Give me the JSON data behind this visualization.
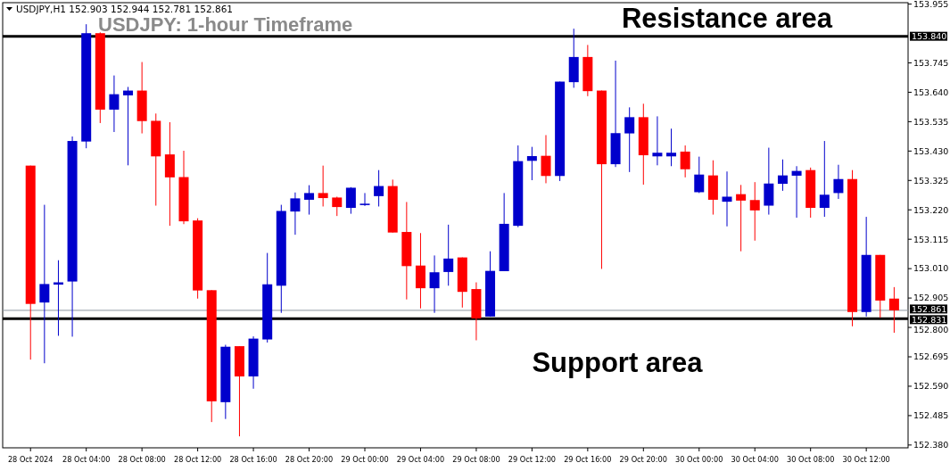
{
  "chart_data": {
    "type": "candlestick",
    "title": "USDJPY: 1-hour Timeframe",
    "subtitle": "USDJPY,H1  152.903 152.944 152.781 152.861",
    "x": [
      "2024-10-28T00:00",
      "2024-10-28T01:00",
      "2024-10-28T02:00",
      "2024-10-28T03:00",
      "2024-10-28T04:00",
      "2024-10-28T05:00",
      "2024-10-28T06:00",
      "2024-10-28T07:00",
      "2024-10-28T08:00",
      "2024-10-28T09:00",
      "2024-10-28T10:00",
      "2024-10-28T11:00",
      "2024-10-28T12:00",
      "2024-10-28T13:00",
      "2024-10-28T14:00",
      "2024-10-28T15:00",
      "2024-10-28T16:00",
      "2024-10-28T17:00",
      "2024-10-28T18:00",
      "2024-10-28T19:00",
      "2024-10-28T20:00",
      "2024-10-28T21:00",
      "2024-10-28T22:00",
      "2024-10-28T23:00",
      "2024-10-29T00:00",
      "2024-10-29T01:00",
      "2024-10-29T02:00",
      "2024-10-29T03:00",
      "2024-10-29T04:00",
      "2024-10-29T05:00",
      "2024-10-29T06:00",
      "2024-10-29T07:00",
      "2024-10-29T08:00",
      "2024-10-29T09:00",
      "2024-10-29T10:00",
      "2024-10-29T11:00",
      "2024-10-29T12:00",
      "2024-10-29T13:00",
      "2024-10-29T14:00",
      "2024-10-29T15:00",
      "2024-10-29T16:00",
      "2024-10-29T17:00",
      "2024-10-29T18:00",
      "2024-10-29T19:00",
      "2024-10-29T20:00",
      "2024-10-29T21:00",
      "2024-10-29T22:00",
      "2024-10-29T23:00",
      "2024-10-30T00:00",
      "2024-10-30T01:00",
      "2024-10-30T02:00",
      "2024-10-30T03:00",
      "2024-10-30T04:00",
      "2024-10-30T05:00",
      "2024-10-30T06:00",
      "2024-10-30T07:00",
      "2024-10-30T08:00",
      "2024-10-30T09:00",
      "2024-10-30T10:00",
      "2024-10-30T11:00",
      "2024-10-30T12:00",
      "2024-10-30T13:00",
      "2024-10-30T14:00"
    ],
    "ohlc": [
      [
        153.378,
        153.378,
        152.685,
        152.884
      ],
      [
        152.889,
        153.238,
        152.672,
        152.955
      ],
      [
        152.953,
        153.04,
        152.77,
        152.961
      ],
      [
        152.964,
        153.482,
        152.767,
        153.466
      ],
      [
        153.464,
        153.883,
        153.44,
        153.851
      ],
      [
        153.851,
        153.854,
        153.53,
        153.578
      ],
      [
        153.578,
        153.7,
        153.498,
        153.633
      ],
      [
        153.629,
        153.659,
        153.379,
        153.646
      ],
      [
        153.646,
        153.748,
        153.493,
        153.537
      ],
      [
        153.538,
        153.564,
        153.235,
        153.411
      ],
      [
        153.418,
        153.533,
        153.163,
        153.336
      ],
      [
        153.337,
        153.431,
        153.169,
        153.179
      ],
      [
        153.182,
        153.19,
        152.903,
        152.932
      ],
      [
        152.933,
        152.933,
        152.462,
        152.536
      ],
      [
        152.533,
        152.738,
        152.473,
        152.731
      ],
      [
        152.733,
        152.733,
        152.411,
        152.625
      ],
      [
        152.625,
        152.768,
        152.581,
        152.76
      ],
      [
        152.757,
        153.066,
        152.746,
        152.954
      ],
      [
        152.949,
        153.238,
        152.852,
        153.216
      ],
      [
        153.214,
        153.282,
        153.131,
        153.261
      ],
      [
        153.256,
        153.308,
        153.203,
        153.28
      ],
      [
        153.28,
        153.378,
        153.232,
        153.262
      ],
      [
        153.264,
        153.267,
        153.198,
        153.23
      ],
      [
        153.227,
        153.301,
        153.206,
        153.299
      ],
      [
        153.237,
        153.28,
        153.234,
        153.242
      ],
      [
        153.269,
        153.362,
        153.232,
        153.305
      ],
      [
        153.305,
        153.328,
        153.139,
        153.139
      ],
      [
        153.141,
        153.248,
        152.9,
        153.019
      ],
      [
        153.021,
        153.137,
        152.868,
        152.94
      ],
      [
        152.94,
        153.057,
        152.852,
        152.997
      ],
      [
        152.998,
        153.167,
        152.949,
        153.046
      ],
      [
        153.05,
        153.05,
        152.871,
        152.927
      ],
      [
        152.937,
        152.961,
        152.754,
        152.832
      ],
      [
        152.839,
        153.072,
        152.839,
        153.002
      ],
      [
        153.001,
        153.28,
        153.001,
        153.17
      ],
      [
        153.163,
        153.45,
        153.158,
        153.394
      ],
      [
        153.395,
        153.445,
        153.326,
        153.412
      ],
      [
        153.413,
        153.487,
        153.315,
        153.341
      ],
      [
        153.341,
        153.678,
        153.323,
        153.678
      ],
      [
        153.676,
        153.867,
        153.656,
        153.766
      ],
      [
        153.766,
        153.809,
        153.626,
        153.644
      ],
      [
        153.646,
        153.646,
        153.009,
        153.383
      ],
      [
        153.383,
        153.753,
        153.373,
        153.494
      ],
      [
        153.493,
        153.586,
        153.355,
        153.551
      ],
      [
        153.551,
        153.599,
        153.31,
        153.415
      ],
      [
        153.411,
        153.554,
        153.379,
        153.424
      ],
      [
        153.411,
        153.51,
        153.376,
        153.424
      ],
      [
        153.428,
        153.45,
        153.336,
        153.365
      ],
      [
        153.283,
        153.41,
        153.28,
        153.346
      ],
      [
        153.343,
        153.397,
        153.203,
        153.256
      ],
      [
        153.249,
        153.357,
        153.161,
        153.267
      ],
      [
        153.276,
        153.309,
        153.072,
        153.253
      ],
      [
        153.255,
        153.319,
        153.11,
        153.218
      ],
      [
        153.235,
        153.442,
        153.203,
        153.314
      ],
      [
        153.313,
        153.4,
        153.288,
        153.343
      ],
      [
        153.342,
        153.376,
        153.192,
        153.359
      ],
      [
        153.362,
        153.371,
        153.192,
        153.227
      ],
      [
        153.227,
        153.466,
        153.195,
        153.274
      ],
      [
        153.28,
        153.381,
        153.259,
        153.33
      ],
      [
        153.33,
        153.362,
        152.804,
        152.855
      ],
      [
        152.855,
        153.195,
        152.839,
        153.059
      ],
      [
        153.059,
        153.059,
        152.834,
        152.896
      ],
      [
        152.903,
        152.944,
        152.781,
        152.861
      ]
    ],
    "colors": [
      "#ff0000",
      "#0000cc",
      "#0000cc",
      "#0000cc",
      "#0000cc",
      "#ff0000",
      "#0000cc",
      "#0000cc",
      "#ff0000",
      "#ff0000",
      "#ff0000",
      "#ff0000",
      "#ff0000",
      "#ff0000",
      "#0000cc",
      "#ff0000",
      "#0000cc",
      "#0000cc",
      "#0000cc",
      "#0000cc",
      "#0000cc",
      "#ff0000",
      "#ff0000",
      "#0000cc",
      "#0000cc",
      "#0000cc",
      "#ff0000",
      "#ff0000",
      "#ff0000",
      "#0000cc",
      "#0000cc",
      "#ff0000",
      "#ff0000",
      "#0000cc",
      "#0000cc",
      "#0000cc",
      "#0000cc",
      "#ff0000",
      "#0000cc",
      "#0000cc",
      "#ff0000",
      "#ff0000",
      "#0000cc",
      "#0000cc",
      "#ff0000",
      "#0000cc",
      "#0000cc",
      "#ff0000",
      "#0000cc",
      "#ff0000",
      "#0000cc",
      "#ff0000",
      "#ff0000",
      "#0000cc",
      "#0000cc",
      "#0000cc",
      "#ff0000",
      "#0000cc",
      "#0000cc",
      "#ff0000",
      "#0000cc",
      "#ff0000",
      "#ff0000"
    ],
    "xlim": [
      "2024-10-27T22:00",
      "2024-10-30T15:00"
    ],
    "xticks": [
      {
        "value": "2024-10-28T00:00",
        "label": "28 Oct 2024"
      },
      {
        "value": "2024-10-28T04:00",
        "label": "28 Oct 04:00"
      },
      {
        "value": "2024-10-28T08:00",
        "label": "28 Oct 08:00"
      },
      {
        "value": "2024-10-28T12:00",
        "label": "28 Oct 12:00"
      },
      {
        "value": "2024-10-28T16:00",
        "label": "28 Oct 16:00"
      },
      {
        "value": "2024-10-28T20:00",
        "label": "28 Oct 20:00"
      },
      {
        "value": "2024-10-29T00:00",
        "label": "29 Oct 00:00"
      },
      {
        "value": "2024-10-29T04:00",
        "label": "29 Oct 04:00"
      },
      {
        "value": "2024-10-29T08:00",
        "label": "29 Oct 08:00"
      },
      {
        "value": "2024-10-29T12:00",
        "label": "29 Oct 12:00"
      },
      {
        "value": "2024-10-29T16:00",
        "label": "29 Oct 16:00"
      },
      {
        "value": "2024-10-29T20:00",
        "label": "29 Oct 20:00"
      },
      {
        "value": "2024-10-30T00:00",
        "label": "30 Oct 00:00"
      },
      {
        "value": "2024-10-30T04:00",
        "label": "30 Oct 04:00"
      },
      {
        "value": "2024-10-30T08:00",
        "label": "30 Oct 08:00"
      },
      {
        "value": "2024-10-30T12:00",
        "label": "30 Oct 12:00"
      }
    ],
    "ylim": [
      152.37,
      153.96
    ],
    "yticks": [
      {
        "value": 152.38,
        "label": "152.380"
      },
      152.485,
      {
        "value": 152.59,
        "label": "152.590"
      },
      152.695,
      {
        "value": 152.8,
        "label": "152.800"
      },
      152.905,
      {
        "value": 153.01,
        "label": "153.010"
      },
      153.115,
      {
        "value": 153.22,
        "label": "153.220"
      },
      153.325,
      {
        "value": 153.43,
        "label": "153.430"
      },
      153.535,
      {
        "value": 153.64,
        "label": "153.640"
      },
      153.745,
      153.955
    ],
    "ref_lines": [
      {
        "axis": "y",
        "value": 153.84,
        "label": "153.840",
        "color": "#000000"
      },
      {
        "axis": "y",
        "value": 152.831,
        "label": "152.831",
        "color": "#000000"
      },
      {
        "axis": "y",
        "value": 152.861,
        "label": "152.861",
        "color": "#8c96a0"
      }
    ],
    "annotations": [
      "Resistance area",
      "Support area"
    ],
    "grid": false
  }
}
